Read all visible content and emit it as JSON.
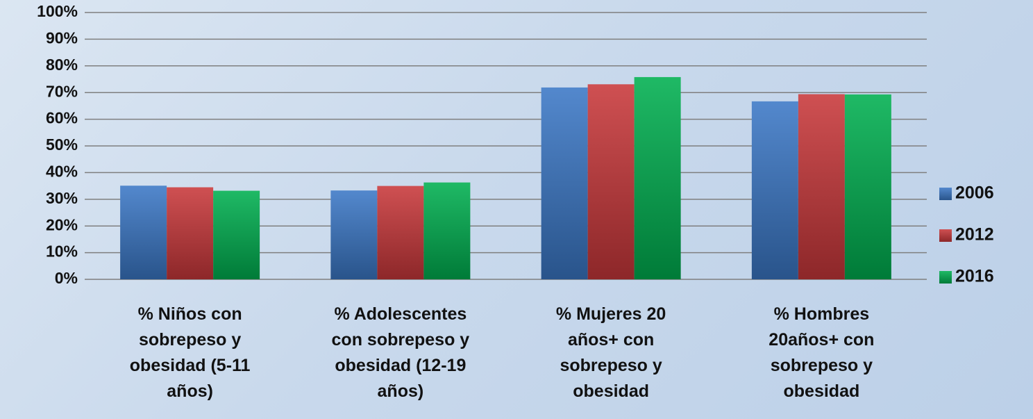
{
  "chart_data": {
    "type": "bar",
    "categories": [
      "% Niños con sobrepeso y obesidad (5-11 años)",
      "% Adolescentes con sobrepeso y obesidad (12-19 años)",
      "% Mujeres 20 años+ con sobrepeso y obesidad",
      "% Hombres 20años+ con sobrepeso y obesidad"
    ],
    "series": [
      {
        "name": "2006",
        "color": "#3b78c6",
        "values": [
          35.1,
          33.3,
          71.9,
          66.7
        ]
      },
      {
        "name": "2012",
        "color": "#c9383a",
        "values": [
          34.5,
          35.0,
          73.1,
          69.4
        ]
      },
      {
        "name": "2016",
        "color": "#00b050",
        "values": [
          33.2,
          36.3,
          75.8,
          69.3
        ]
      }
    ],
    "ylim": [
      0,
      100
    ],
    "yticks": [
      {
        "value": 0,
        "label": "0%"
      },
      {
        "value": 10,
        "label": "10%"
      },
      {
        "value": 20,
        "label": "20%"
      },
      {
        "value": 30,
        "label": "30%"
      },
      {
        "value": 40,
        "label": "40%"
      },
      {
        "value": 50,
        "label": "50%"
      },
      {
        "value": 60,
        "label": "60%"
      },
      {
        "value": 70,
        "label": "70%"
      },
      {
        "value": 80,
        "label": "80%"
      },
      {
        "value": 90,
        "label": "90%"
      },
      {
        "value": 100,
        "label": "100%"
      }
    ],
    "grid": true,
    "legend": "right"
  }
}
